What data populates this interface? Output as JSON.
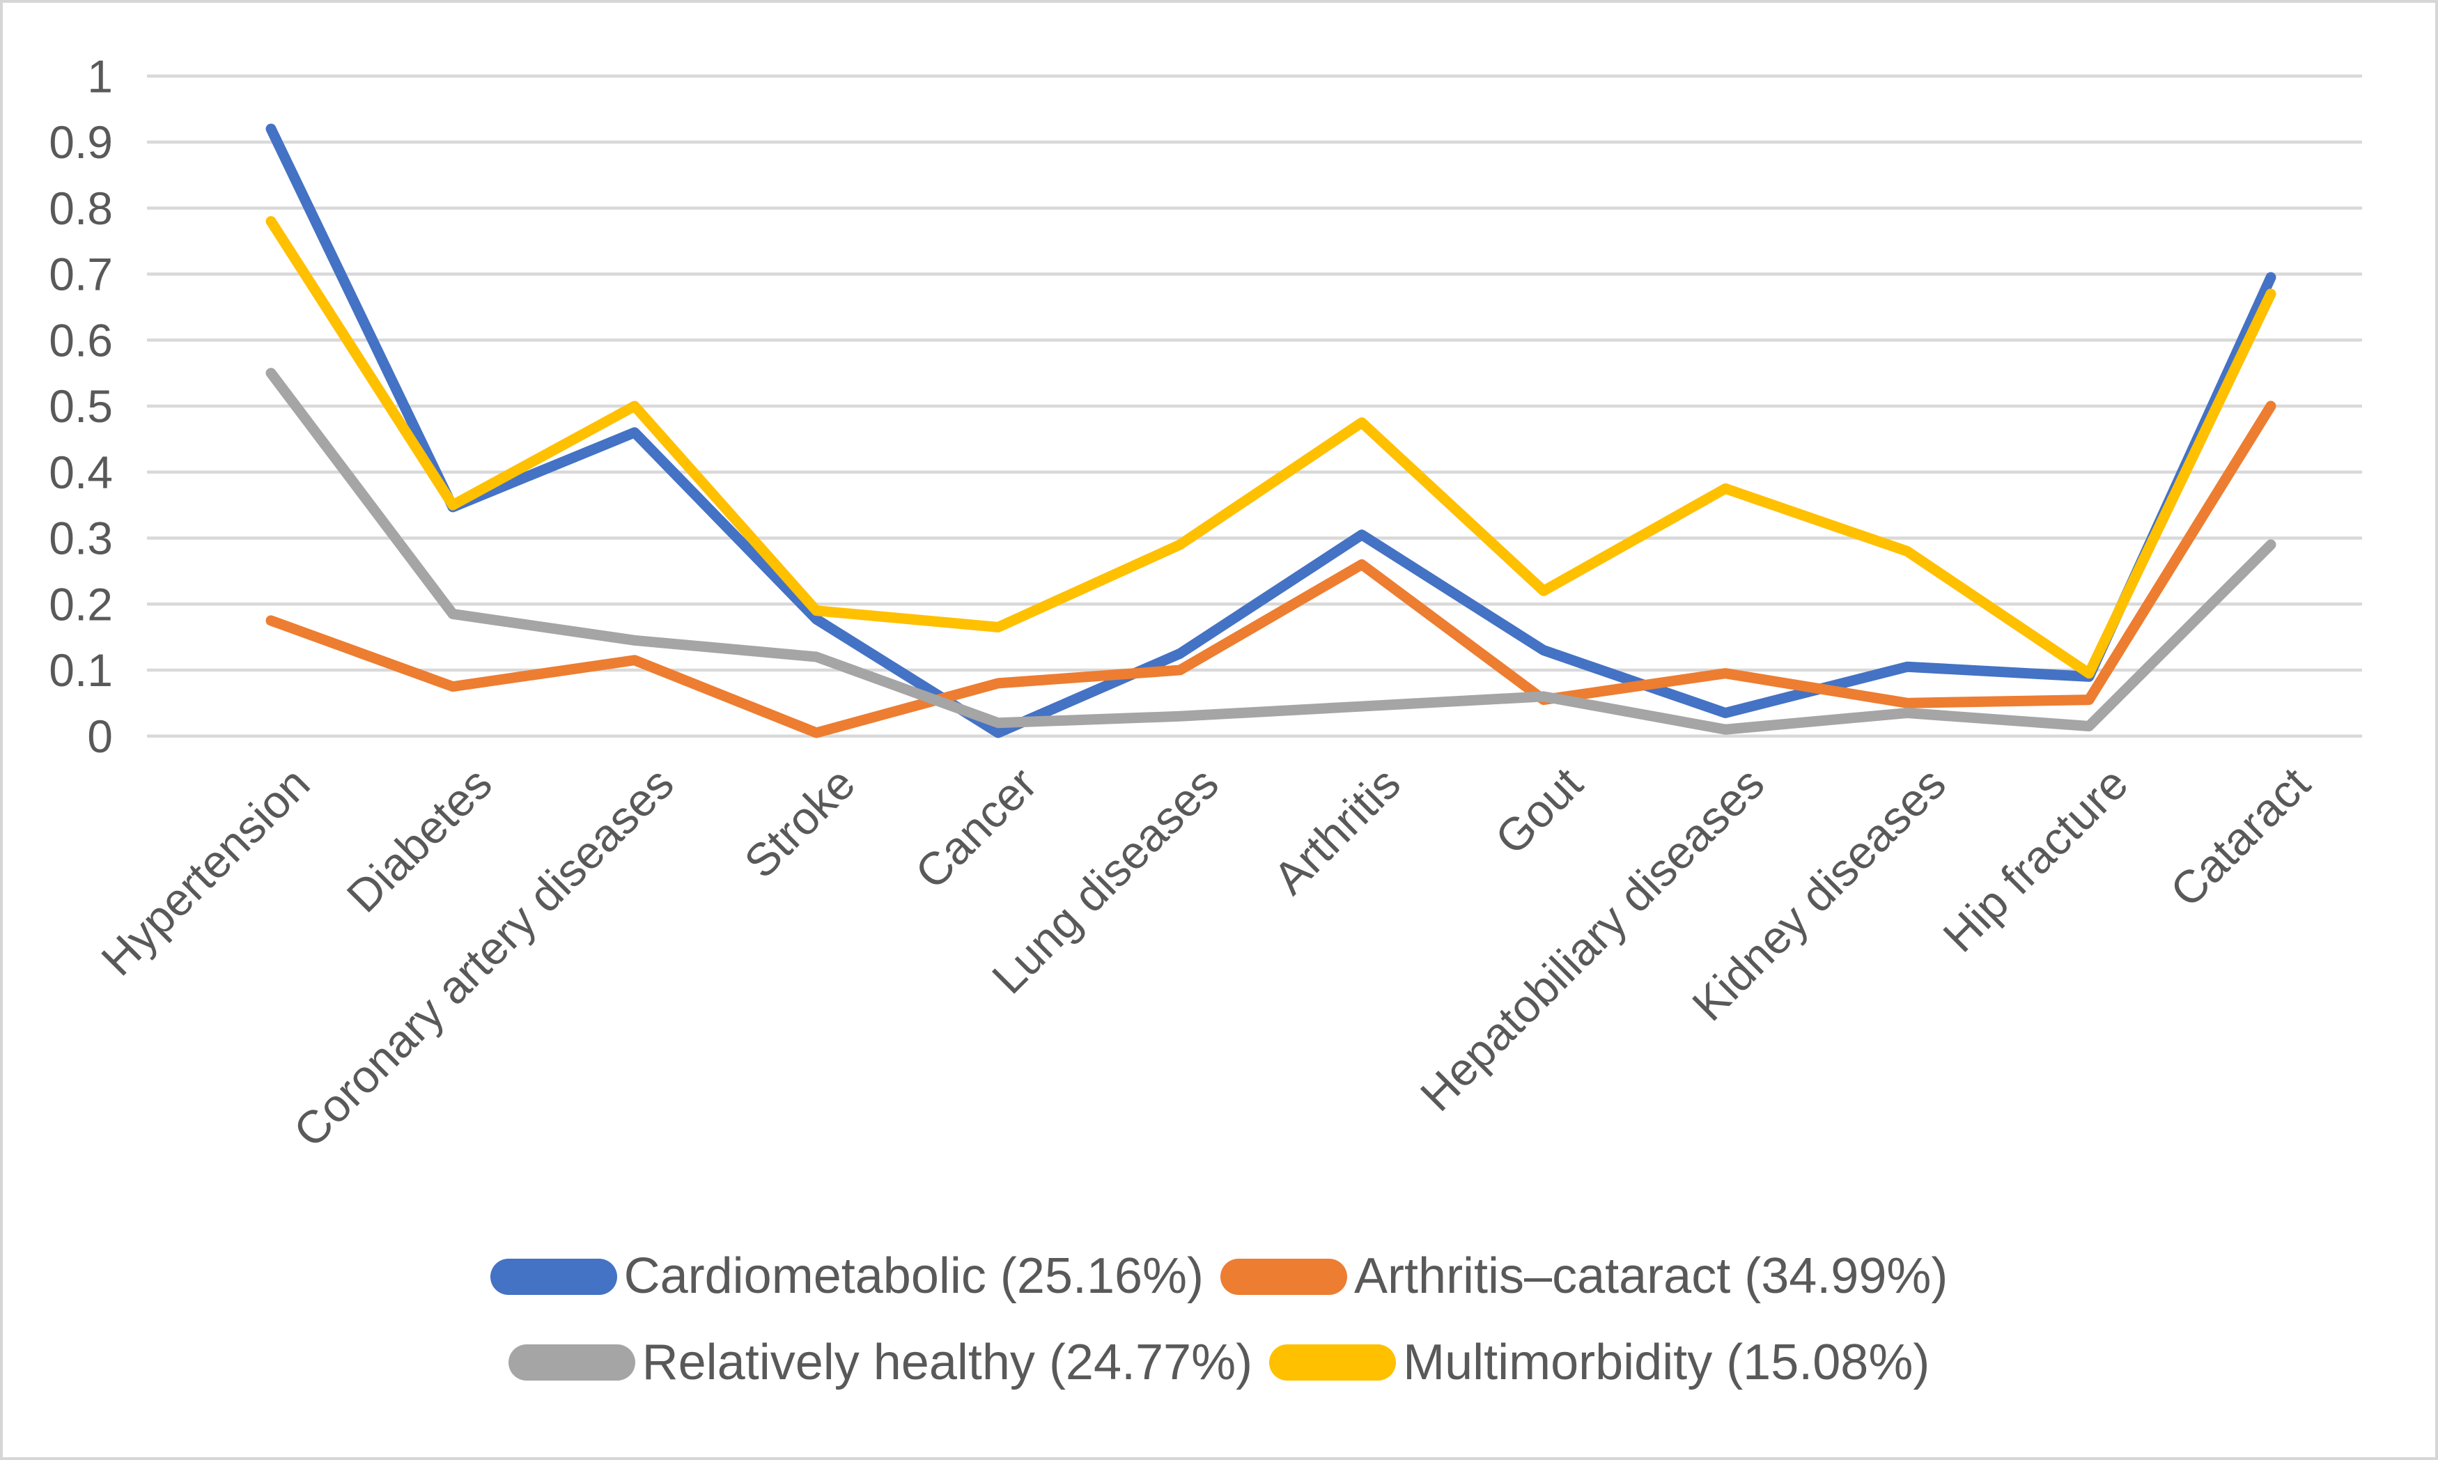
{
  "figure": {
    "background": "#ffffff",
    "border_color": "#d6d6d6",
    "text_color": "#595959",
    "gridline_color": "#d9d9d9"
  },
  "chart_data": {
    "type": "line",
    "title": "",
    "xlabel": "",
    "ylabel": "",
    "ylim": [
      0,
      1
    ],
    "y_tick_step": 0.1,
    "grid": "horizontal",
    "legend_position": "bottom",
    "y_ticks": [
      "0",
      "0.1",
      "0.2",
      "0.3",
      "0.4",
      "0.5",
      "0.6",
      "0.7",
      "0.8",
      "0.9",
      "1"
    ],
    "categories": [
      "Hypertension",
      "Diabetes",
      "Coronary artery diseases",
      "Stroke",
      "Cancer",
      "Lung diseases",
      "Arthritis",
      "Gout",
      "Hepatobiliary diseases",
      "Kidney diseases",
      "Hip fracture",
      "Cataract"
    ],
    "series": [
      {
        "name": "Cardiometabolic",
        "legend_label": "Cardiometabolic (25.16%)",
        "color": "#4472C4",
        "values": [
          0.92,
          0.347,
          0.46,
          0.177,
          0.005,
          0.125,
          0.305,
          0.13,
          0.035,
          0.105,
          0.09,
          0.695
        ]
      },
      {
        "name": "Arthritis–cataract",
        "legend_label": "Arthritis–cataract (34.99%)",
        "color": "#ED7D31",
        "values": [
          0.175,
          0.075,
          0.115,
          0.005,
          0.08,
          0.1,
          0.26,
          0.055,
          0.095,
          0.05,
          0.055,
          0.5
        ]
      },
      {
        "name": "Relatively healthy",
        "legend_label": "Relatively healthy (24.77%)",
        "color": "#A5A5A5",
        "values": [
          0.55,
          0.185,
          0.145,
          0.12,
          0.02,
          0.03,
          0.045,
          0.06,
          0.01,
          0.035,
          0.015,
          0.29
        ]
      },
      {
        "name": "Multimorbidity",
        "legend_label": "Multimorbidity (15.08%)",
        "color": "#FFC000",
        "values": [
          0.78,
          0.35,
          0.5,
          0.19,
          0.165,
          0.29,
          0.475,
          0.22,
          0.375,
          0.28,
          0.095,
          0.67
        ]
      }
    ]
  }
}
